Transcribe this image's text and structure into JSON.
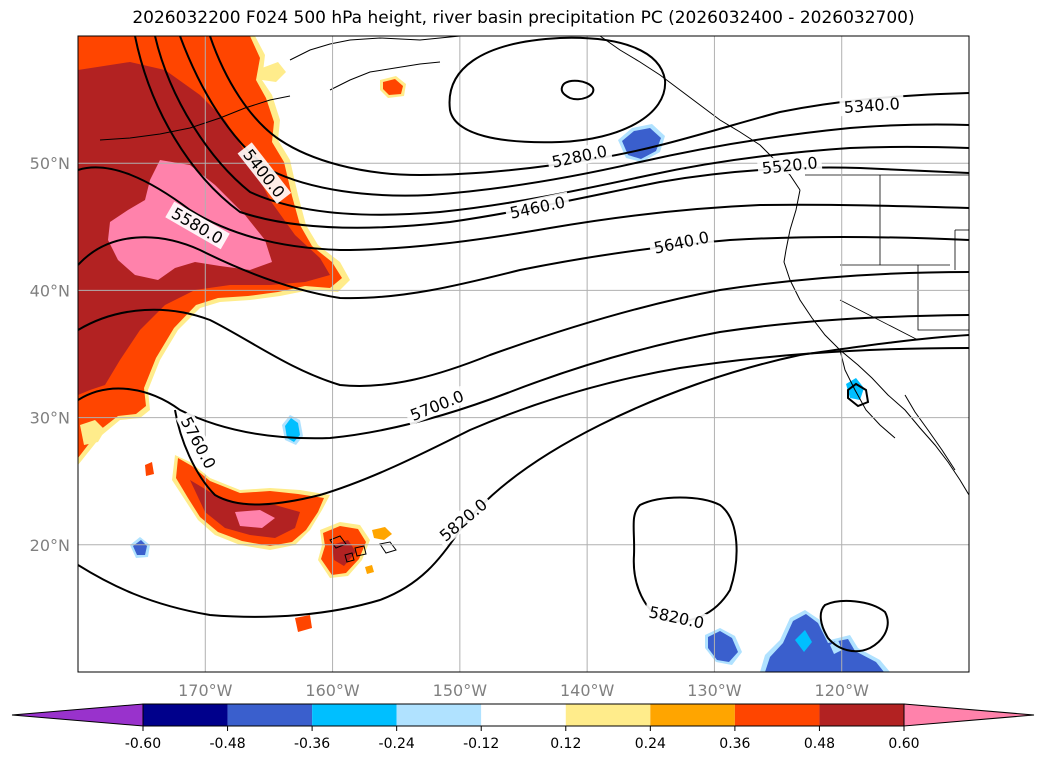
{
  "title": "2026032200 F024 500 hPa height, river basin precipitation PC (2026032400 - 2026032700)",
  "map": {
    "lon_range": [
      -180,
      -110
    ],
    "lat_range": [
      10,
      60
    ],
    "lon_ticks": [
      {
        "lon": -170,
        "label": "170°W"
      },
      {
        "lon": -160,
        "label": "160°W"
      },
      {
        "lon": -150,
        "label": "150°W"
      },
      {
        "lon": -140,
        "label": "140°W"
      },
      {
        "lon": -130,
        "label": "130°W"
      },
      {
        "lon": -120,
        "label": "120°W"
      }
    ],
    "lat_ticks": [
      {
        "lat": 50,
        "label": "50°N"
      },
      {
        "lat": 40,
        "label": "40°N"
      },
      {
        "lat": 30,
        "label": "30°N"
      },
      {
        "lat": 20,
        "label": "20°N"
      }
    ],
    "grid": true
  },
  "contours": [
    {
      "value": "5280.0"
    },
    {
      "value": "5340.0"
    },
    {
      "value": "5400.0"
    },
    {
      "value": "5460.0"
    },
    {
      "value": "5520.0"
    },
    {
      "value": "5580.0"
    },
    {
      "value": "5640.0"
    },
    {
      "value": "5700.0"
    },
    {
      "value": "5760.0"
    },
    {
      "value": "5820.0"
    }
  ],
  "colorbar": {
    "colors": [
      "#9932cc",
      "#00008b",
      "#3a5fcd",
      "#00bfff",
      "#b0e2ff",
      "#ffffff",
      "#ffec8b",
      "#ffa500",
      "#ff4500",
      "#b22222",
      "#ff82ab"
    ],
    "ticks": [
      "-0.60",
      "-0.48",
      "-0.36",
      "-0.24",
      "-0.12",
      "0.12",
      "0.24",
      "0.36",
      "0.48",
      "0.60"
    ]
  },
  "fill_colors": {
    "strong_pos": "#ff82ab",
    "mid_pos": "#b22222",
    "pos": "#ff4500",
    "weak_pos": "#ffa500",
    "faint_pos": "#ffec8b",
    "neg": "#3a5fcd",
    "weak_neg": "#00bfff",
    "faint_neg": "#b0e2ff"
  }
}
